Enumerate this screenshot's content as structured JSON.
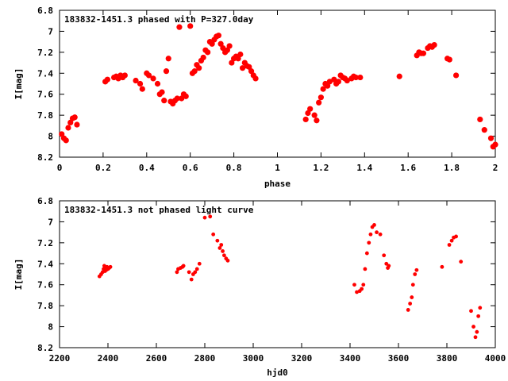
{
  "chart_data": [
    {
      "type": "scatter",
      "title": "183832-1451.3 phased with P=327.0day",
      "xlabel": "phase",
      "ylabel": "I[mag]",
      "xlim": [
        0,
        2
      ],
      "ylim": [
        6.8,
        8.2
      ],
      "y_inverted": true,
      "xticks": [
        "0",
        "0.2",
        "0.4",
        "0.6",
        "0.8",
        "1",
        "1.2",
        "1.4",
        "1.6",
        "1.8",
        "2"
      ],
      "yticks": [
        "6.8",
        "7",
        "7.2",
        "7.4",
        "7.6",
        "7.8",
        "8",
        "8.2"
      ],
      "grid": false,
      "marker_color": "#ff0000",
      "series": [
        {
          "x": [
            0.01,
            0.02,
            0.03,
            0.04,
            0.05,
            0.06,
            0.07,
            0.08,
            0.21,
            0.22,
            0.25,
            0.26,
            0.27,
            0.28,
            0.29,
            0.3,
            0.35,
            0.37,
            0.38,
            0.4,
            0.41,
            0.43,
            0.45,
            0.46,
            0.47,
            0.48,
            0.49,
            0.5,
            0.51,
            0.52,
            0.53,
            0.54,
            0.55,
            0.56,
            0.57,
            0.58,
            0.6,
            0.61,
            0.62,
            0.63,
            0.64,
            0.65,
            0.66,
            0.67,
            0.68,
            0.69,
            0.7,
            0.71,
            0.72,
            0.73,
            0.74,
            0.75,
            0.76,
            0.77,
            0.78,
            0.79,
            0.8,
            0.81,
            0.82,
            0.83,
            0.84,
            0.85,
            0.86,
            0.87,
            0.88,
            0.89,
            0.9,
            1.13,
            1.14,
            1.15,
            1.17,
            1.18,
            1.19,
            1.2,
            1.21,
            1.22,
            1.23,
            1.24,
            1.26,
            1.27,
            1.28,
            1.29,
            1.3,
            1.31,
            1.32,
            1.34,
            1.35,
            1.36,
            1.38,
            1.56,
            1.64,
            1.65,
            1.66,
            1.67,
            1.69,
            1.7,
            1.71,
            1.72,
            1.78,
            1.79,
            1.82,
            1.93,
            1.95,
            1.98,
            1.99,
            2.0
          ],
          "y": [
            7.98,
            8.02,
            8.04,
            7.92,
            7.87,
            7.83,
            7.82,
            7.89,
            7.48,
            7.46,
            7.44,
            7.43,
            7.45,
            7.42,
            7.44,
            7.42,
            7.47,
            7.5,
            7.55,
            7.4,
            7.42,
            7.45,
            7.5,
            7.6,
            7.58,
            7.66,
            7.38,
            7.26,
            7.67,
            7.69,
            7.66,
            7.64,
            6.96,
            7.64,
            7.6,
            7.62,
            6.95,
            7.4,
            7.38,
            7.32,
            7.35,
            7.28,
            7.25,
            7.18,
            7.2,
            7.1,
            7.12,
            7.08,
            7.05,
            7.04,
            7.12,
            7.16,
            7.2,
            7.18,
            7.14,
            7.3,
            7.26,
            7.24,
            7.26,
            7.22,
            7.35,
            7.3,
            7.33,
            7.34,
            7.38,
            7.42,
            7.45,
            7.84,
            7.78,
            7.74,
            7.8,
            7.85,
            7.68,
            7.63,
            7.55,
            7.5,
            7.52,
            7.48,
            7.46,
            7.5,
            7.48,
            7.42,
            7.44,
            7.45,
            7.47,
            7.45,
            7.43,
            7.44,
            7.44,
            7.43,
            7.23,
            7.2,
            7.21,
            7.21,
            7.16,
            7.14,
            7.15,
            7.13,
            7.26,
            7.27,
            7.42,
            7.84,
            7.94,
            8.02,
            8.1,
            8.08
          ]
        }
      ]
    },
    {
      "type": "scatter",
      "title": "183832-1451.3 not phased light curve",
      "xlabel": "hjd0",
      "ylabel": "I[mag]",
      "xlim": [
        2200,
        4000
      ],
      "ylim": [
        6.8,
        8.2
      ],
      "y_inverted": true,
      "xticks": [
        "2200",
        "2400",
        "2600",
        "2800",
        "3000",
        "3200",
        "3400",
        "3600",
        "3800",
        "4000"
      ],
      "yticks": [
        "6.8",
        "7",
        "7.2",
        "7.4",
        "7.6",
        "7.8",
        "8",
        "8.2"
      ],
      "grid": false,
      "marker_color": "#ff0000",
      "series": [
        {
          "x": [
            2365,
            2372,
            2378,
            2382,
            2385,
            2388,
            2390,
            2393,
            2396,
            2400,
            2405,
            2410,
            2685,
            2690,
            2700,
            2708,
            2712,
            2735,
            2745,
            2752,
            2760,
            2768,
            2778,
            2800,
            2822,
            2835,
            2852,
            2862,
            2868,
            2874,
            2880,
            2888,
            2895,
            3418,
            3428,
            3440,
            3448,
            3455,
            3462,
            3470,
            3478,
            3485,
            3492,
            3500,
            3510,
            3525,
            3540,
            3550,
            3556,
            3560,
            3640,
            3648,
            3655,
            3660,
            3668,
            3675,
            3780,
            3810,
            3820,
            3828,
            3838,
            3858,
            3900,
            3910,
            3918,
            3924,
            3930,
            3937
          ],
          "y": [
            7.52,
            7.5,
            7.48,
            7.45,
            7.42,
            7.47,
            7.44,
            7.46,
            7.43,
            7.45,
            7.44,
            7.43,
            7.48,
            7.45,
            7.44,
            7.43,
            7.42,
            7.48,
            7.55,
            7.5,
            7.48,
            7.45,
            7.4,
            6.96,
            6.95,
            7.12,
            7.18,
            7.25,
            7.22,
            7.28,
            7.32,
            7.35,
            7.37,
            7.6,
            7.67,
            7.66,
            7.64,
            7.6,
            7.45,
            7.3,
            7.2,
            7.12,
            7.05,
            7.03,
            7.1,
            7.12,
            7.32,
            7.4,
            7.44,
            7.42,
            7.84,
            7.78,
            7.72,
            7.6,
            7.5,
            7.46,
            7.43,
            7.22,
            7.18,
            7.15,
            7.14,
            7.38,
            7.85,
            8.0,
            8.1,
            8.05,
            7.9,
            7.82
          ]
        }
      ]
    }
  ]
}
